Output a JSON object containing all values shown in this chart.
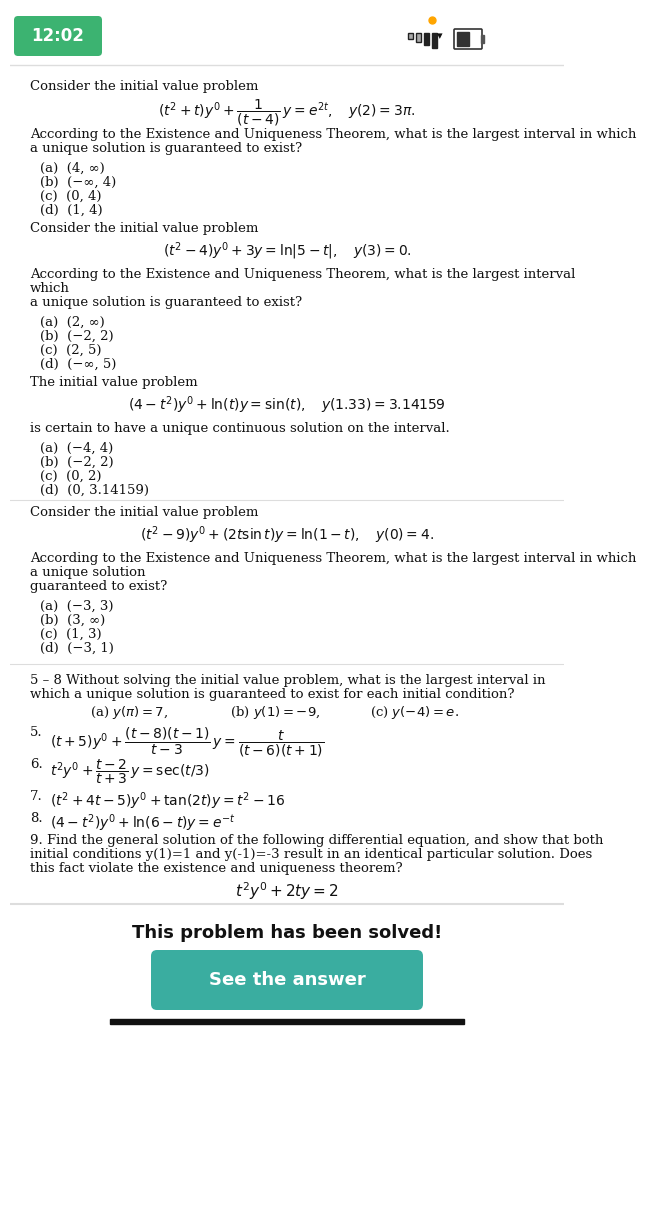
{
  "bg_color": "#ffffff",
  "status_bar": {
    "time": "12:02",
    "time_bg": "#3cb371",
    "time_color": "#ffffff"
  },
  "sections": [
    {
      "type": "problem",
      "text": "Consider the initial value problem",
      "equation": "(t² + t)y′ +         y = e²ᵗ,   y(2) = 3π.",
      "equation_fraction": "1 / (t − 4)",
      "question": "According to the Existence and Uniqueness Theorem, what is the largest interval in which\na unique solution is guaranteed to exist?",
      "choices": [
        "(a)  (4, ∞)",
        "(b)  (−∞, 4)",
        "(c)  (0, 4)",
        "(d)  (1, 4)"
      ]
    },
    {
      "type": "problem",
      "text": "Consider the initial value problem",
      "equation": "(t² − 4)y′ + 3y = ln |5 − t|,   y(3) = 0.",
      "question": "According to the Existence and Uniqueness Theorem, what is the largest interval\nwhich\na unique solution is guaranteed to exist?",
      "choices": [
        "(a)  (2, ∞)",
        "(b)  (−2, 2)",
        "(c)  (2, 5)",
        "(d)  (−∞, 5)"
      ]
    },
    {
      "type": "problem",
      "text": "The initial value problem",
      "equation": "(4 − t²)y′ + ln(t)y = sin(t),   y(1.33) = 3.14159",
      "question": "is certain to have a unique continuous solution on the interval.",
      "choices": [
        "(a)  (−4, 4)",
        "(b)  (−2, 2)",
        "(c)  (0, 2)",
        "(d)  (0, 3.14159)"
      ]
    },
    {
      "type": "problem",
      "text": "Consider the initial value problem",
      "equation": "(t² − 9)y′ + (2t sin t)y = ln(1 − t),   y(0) = 4.",
      "question": "According to the Existence and Uniqueness Theorem, what is the largest interval in which\na unique solution\nguaranteed to exist?",
      "choices": [
        "(a)  (−3, 3)",
        "(b)  (3, ∞)",
        "(c)  (1, 3)",
        "(d)  (−3, 1)"
      ]
    }
  ],
  "section_58": {
    "header": "5 – 8 Without solving the initial value problem, what is the largest interval in\nwhich a unique solution is guaranteed to exist for each initial condition?",
    "conditions": "    (a) y(x) = 7,       (b) y(1) = −9,     (c) y(−4) = e.",
    "problems": [
      "5.   (t + 5)y′ +                  y =                       ",
      "6.   t²y′ +               y = sec(t/3)",
      "7.   (t² + 4t − 5)y′ + tan(2t)y = t² − 16",
      "8.   (4 − t²)y′ + ln(6 − t)y = e⁻ᵗ"
    ]
  },
  "problem9": {
    "text": "9. Find the general solution of the following differential equation, and show that both\ninitial conditions y(1)=1 and y(-1)=-3 result in an identical particular solution. Does\nthis fact violate the existence and uniqueness theorem?",
    "equation": "t²y′ + 2ty = 2"
  },
  "footer": {
    "solved_text": "This problem has been solved!",
    "button_text": "See the answer",
    "button_color": "#3aada0",
    "button_text_color": "#ffffff"
  }
}
